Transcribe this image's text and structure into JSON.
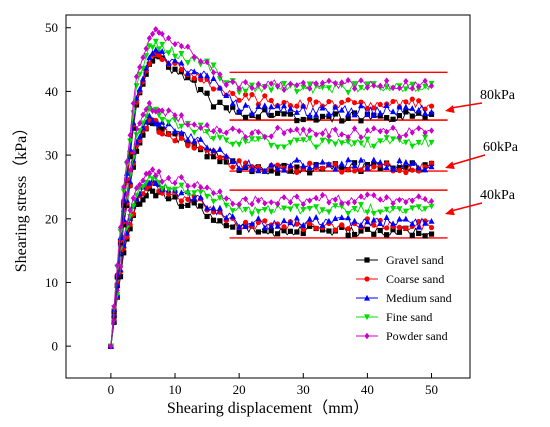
{
  "chart_data": {
    "type": "line",
    "title": "",
    "xlabel": "Shearing displacement（mm）",
    "ylabel": "Shearing stress（kPa）",
    "xlim": [
      -7,
      56
    ],
    "ylim": [
      -5,
      52
    ],
    "xticks": [
      0,
      10,
      20,
      30,
      40,
      50
    ],
    "yticks": [
      0,
      10,
      20,
      30,
      40,
      50
    ],
    "grid": false,
    "legend_position": "bottom-right",
    "series": [
      {
        "name": "Gravel sand",
        "color": "#000000",
        "marker": "square"
      },
      {
        "name": "Coarse sand",
        "color": "#ff0000",
        "marker": "circle"
      },
      {
        "name": "Medium sand",
        "color": "#0000ff",
        "marker": "triangle-up"
      },
      {
        "name": "Fine sand",
        "color": "#00dd00",
        "marker": "triangle-down"
      },
      {
        "name": "Powder sand",
        "color": "#cc00cc",
        "marker": "diamond"
      }
    ],
    "groups": [
      {
        "label": "40kPa",
        "curves": {
          "Gravel sand": [
            [
              0,
              0
            ],
            [
              2,
              15
            ],
            [
              4,
              22
            ],
            [
              6,
              24.5
            ],
            [
              8,
              24
            ],
            [
              10,
              23
            ],
            [
              12,
              22.5
            ],
            [
              14,
              22
            ],
            [
              16,
              20
            ],
            [
              18,
              19
            ],
            [
              20,
              18.5
            ],
            [
              25,
              18
            ],
            [
              30,
              18
            ],
            [
              35,
              18.2
            ],
            [
              40,
              18
            ],
            [
              45,
              18.3
            ],
            [
              50,
              18
            ]
          ],
          "Coarse sand": [
            [
              0,
              0
            ],
            [
              2,
              15.5
            ],
            [
              4,
              23
            ],
            [
              6,
              25.5
            ],
            [
              8,
              24.5
            ],
            [
              10,
              23.5
            ],
            [
              12,
              23
            ],
            [
              14,
              22.5
            ],
            [
              16,
              21
            ],
            [
              18,
              20
            ],
            [
              20,
              19
            ],
            [
              25,
              19
            ],
            [
              30,
              19
            ],
            [
              35,
              19
            ],
            [
              40,
              19.2
            ],
            [
              45,
              19
            ],
            [
              50,
              19
            ]
          ],
          "Medium sand": [
            [
              0,
              0
            ],
            [
              2,
              16
            ],
            [
              4,
              23.5
            ],
            [
              6,
              26
            ],
            [
              8,
              25
            ],
            [
              10,
              24
            ],
            [
              12,
              23.5
            ],
            [
              14,
              23
            ],
            [
              16,
              21.5
            ],
            [
              18,
              20.5
            ],
            [
              20,
              19.5
            ],
            [
              25,
              19.2
            ],
            [
              30,
              19.5
            ],
            [
              35,
              19.5
            ],
            [
              40,
              19.5
            ],
            [
              45,
              19.5
            ],
            [
              50,
              19.5
            ]
          ],
          "Fine sand": [
            [
              0,
              0
            ],
            [
              2,
              16.5
            ],
            [
              4,
              24
            ],
            [
              6,
              26.5
            ],
            [
              8,
              25.5
            ],
            [
              10,
              25
            ],
            [
              12,
              24.5
            ],
            [
              14,
              24
            ],
            [
              16,
              23
            ],
            [
              18,
              22
            ],
            [
              20,
              21.5
            ],
            [
              25,
              21.5
            ],
            [
              30,
              21.5
            ],
            [
              35,
              21.5
            ],
            [
              40,
              21.5
            ],
            [
              45,
              21.5
            ],
            [
              50,
              21.5
            ]
          ],
          "Powder sand": [
            [
              0,
              0
            ],
            [
              2,
              17
            ],
            [
              4,
              25
            ],
            [
              6,
              27.5
            ],
            [
              8,
              26.5
            ],
            [
              10,
              26
            ],
            [
              12,
              25.5
            ],
            [
              14,
              25
            ],
            [
              16,
              24
            ],
            [
              18,
              23
            ],
            [
              20,
              23
            ],
            [
              25,
              23
            ],
            [
              30,
              23
            ],
            [
              35,
              23
            ],
            [
              40,
              23
            ],
            [
              45,
              23
            ],
            [
              50,
              23
            ]
          ]
        },
        "lines": [
          24.5,
          17
        ]
      },
      {
        "label": "60kPa",
        "curves": {
          "Gravel sand": [
            [
              0,
              0
            ],
            [
              2,
              19
            ],
            [
              4,
              31
            ],
            [
              6,
              35
            ],
            [
              8,
              34
            ],
            [
              10,
              33
            ],
            [
              12,
              32
            ],
            [
              14,
              31
            ],
            [
              16,
              30
            ],
            [
              18,
              29
            ],
            [
              20,
              28
            ],
            [
              25,
              27.8
            ],
            [
              30,
              27.8
            ],
            [
              35,
              28
            ],
            [
              40,
              28.2
            ],
            [
              45,
              28
            ],
            [
              50,
              28
            ]
          ],
          "Coarse sand": [
            [
              0,
              0
            ],
            [
              2,
              19.5
            ],
            [
              4,
              31.5
            ],
            [
              6,
              35.5
            ],
            [
              8,
              34
            ],
            [
              10,
              33
            ],
            [
              12,
              32
            ],
            [
              14,
              31.5
            ],
            [
              16,
              30
            ],
            [
              18,
              29
            ],
            [
              20,
              28.5
            ],
            [
              25,
              28
            ],
            [
              30,
              28
            ],
            [
              35,
              28
            ],
            [
              40,
              28
            ],
            [
              45,
              28
            ],
            [
              50,
              28
            ]
          ],
          "Medium sand": [
            [
              0,
              0
            ],
            [
              2,
              20
            ],
            [
              4,
              32
            ],
            [
              6,
              36
            ],
            [
              8,
              35
            ],
            [
              10,
              34
            ],
            [
              12,
              33
            ],
            [
              14,
              32.5
            ],
            [
              16,
              31
            ],
            [
              18,
              29.5
            ],
            [
              20,
              28.5
            ],
            [
              25,
              28.2
            ],
            [
              30,
              28.5
            ],
            [
              35,
              28.5
            ],
            [
              40,
              28.5
            ],
            [
              45,
              28.5
            ],
            [
              50,
              28.2
            ]
          ],
          "Fine sand": [
            [
              0,
              0
            ],
            [
              2,
              20.5
            ],
            [
              4,
              33
            ],
            [
              6,
              37
            ],
            [
              8,
              36
            ],
            [
              10,
              35
            ],
            [
              12,
              34.5
            ],
            [
              14,
              34
            ],
            [
              16,
              33
            ],
            [
              18,
              32.5
            ],
            [
              20,
              32
            ],
            [
              25,
              32
            ],
            [
              30,
              32
            ],
            [
              35,
              32
            ],
            [
              40,
              32
            ],
            [
              45,
              32
            ],
            [
              50,
              32
            ]
          ],
          "Powder sand": [
            [
              0,
              0
            ],
            [
              2,
              21
            ],
            [
              4,
              34
            ],
            [
              6,
              38
            ],
            [
              8,
              37
            ],
            [
              10,
              36
            ],
            [
              12,
              35.5
            ],
            [
              14,
              35
            ],
            [
              16,
              34
            ],
            [
              18,
              33.5
            ],
            [
              20,
              33.5
            ],
            [
              25,
              33.5
            ],
            [
              30,
              33.5
            ],
            [
              35,
              33.5
            ],
            [
              40,
              33.5
            ],
            [
              45,
              33.5
            ],
            [
              50,
              33.5
            ]
          ]
        },
        "lines": [
          35.5,
          27.5
        ]
      },
      {
        "label": "80kPa",
        "curves": {
          "Gravel sand": [
            [
              0,
              0
            ],
            [
              2,
              22
            ],
            [
              4,
              38
            ],
            [
              6,
              44
            ],
            [
              7,
              45.5
            ],
            [
              8,
              45
            ],
            [
              10,
              43
            ],
            [
              12,
              42
            ],
            [
              14,
              40
            ],
            [
              16,
              38
            ],
            [
              18,
              37
            ],
            [
              20,
              36.5
            ],
            [
              25,
              36.5
            ],
            [
              30,
              36
            ],
            [
              35,
              36
            ],
            [
              40,
              36
            ],
            [
              45,
              36
            ],
            [
              50,
              36
            ]
          ],
          "Coarse sand": [
            [
              0,
              0
            ],
            [
              2,
              22.5
            ],
            [
              4,
              38.5
            ],
            [
              6,
              44.5
            ],
            [
              7,
              45.5
            ],
            [
              8,
              45
            ],
            [
              10,
              44
            ],
            [
              12,
              43
            ],
            [
              14,
              42
            ],
            [
              16,
              41
            ],
            [
              18,
              40
            ],
            [
              20,
              39
            ],
            [
              25,
              38.5
            ],
            [
              30,
              38
            ],
            [
              35,
              38
            ],
            [
              40,
              38
            ],
            [
              45,
              38
            ],
            [
              50,
              38
            ]
          ],
          "Medium sand": [
            [
              0,
              0
            ],
            [
              2,
              23
            ],
            [
              4,
              39
            ],
            [
              6,
              45
            ],
            [
              7,
              46
            ],
            [
              8,
              45.5
            ],
            [
              10,
              44.5
            ],
            [
              12,
              43.5
            ],
            [
              14,
              43
            ],
            [
              16,
              41.5
            ],
            [
              18,
              39.5
            ],
            [
              20,
              37.5
            ],
            [
              25,
              37
            ],
            [
              30,
              37
            ],
            [
              35,
              37
            ],
            [
              40,
              37
            ],
            [
              45,
              37
            ],
            [
              50,
              37
            ]
          ],
          "Fine sand": [
            [
              0,
              0
            ],
            [
              2,
              24
            ],
            [
              4,
              41
            ],
            [
              6,
              47
            ],
            [
              7,
              47.5
            ],
            [
              8,
              47
            ],
            [
              10,
              46
            ],
            [
              12,
              45
            ],
            [
              14,
              44.5
            ],
            [
              16,
              43.5
            ],
            [
              18,
              42
            ],
            [
              20,
              40.5
            ],
            [
              25,
              40.5
            ],
            [
              30,
              40.5
            ],
            [
              35,
              40.5
            ],
            [
              40,
              40.5
            ],
            [
              45,
              40.5
            ],
            [
              50,
              40.5
            ]
          ],
          "Powder sand": [
            [
              0,
              0
            ],
            [
              2,
              25
            ],
            [
              4,
              42
            ],
            [
              6,
              48
            ],
            [
              7,
              49
            ],
            [
              8,
              48.5
            ],
            [
              10,
              47.5
            ],
            [
              12,
              46.5
            ],
            [
              14,
              45.5
            ],
            [
              16,
              43
            ],
            [
              18,
              41.5
            ],
            [
              20,
              41
            ],
            [
              25,
              41
            ],
            [
              30,
              41
            ],
            [
              35,
              41
            ],
            [
              40,
              41
            ],
            [
              45,
              41
            ],
            [
              50,
              41
            ]
          ]
        },
        "lines": [
          43,
          35.5
        ]
      }
    ],
    "annotations": [
      {
        "text": "80kPa",
        "group": "80kPa"
      },
      {
        "text": "60kPa",
        "group": "60kPa"
      },
      {
        "text": "40kPa",
        "group": "40kPa"
      }
    ]
  }
}
